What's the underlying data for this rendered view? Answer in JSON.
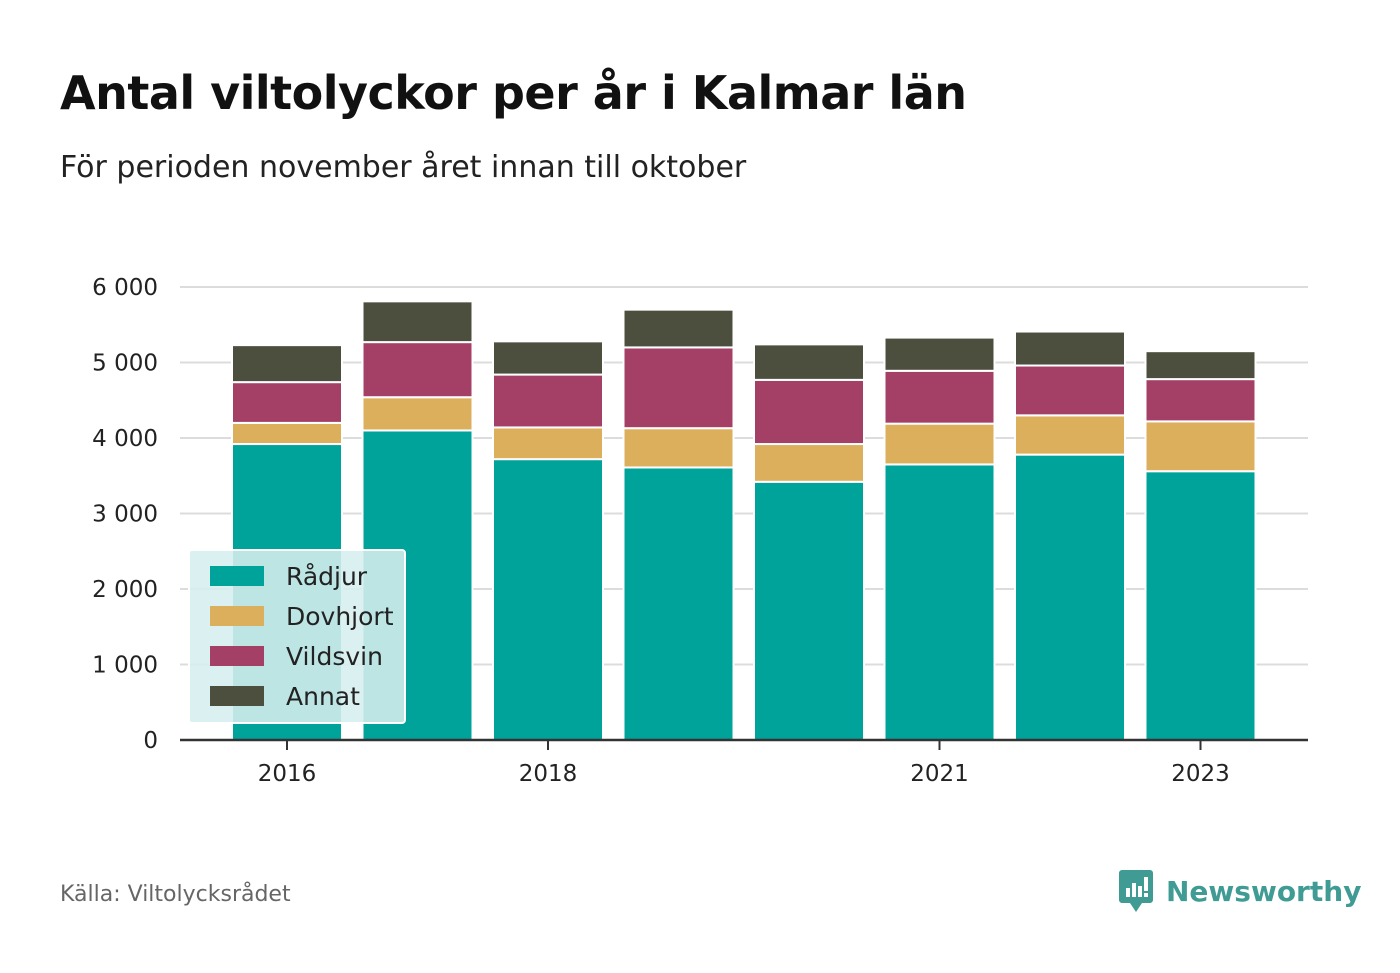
{
  "title": "Antal viltolyckor per år i Kalmar län",
  "subtitle": "För perioden november året innan till oktober",
  "source": "Källa: Viltolycksrådet",
  "brand": {
    "name": "Newsworthy",
    "icon": "newsworthy-logo-icon",
    "color": "#3f9b94"
  },
  "chart_data": {
    "type": "bar",
    "stacked": true,
    "categories": [
      "2016",
      "2017",
      "2018",
      "2019",
      "2020",
      "2021",
      "2022",
      "2023"
    ],
    "x_tick_labels": [
      "2016",
      "2018",
      "2021",
      "2023"
    ],
    "series": [
      {
        "name": "Rådjur",
        "color": "#00a399",
        "values": [
          3920,
          4100,
          3720,
          3610,
          3420,
          3650,
          3780,
          3560
        ]
      },
      {
        "name": "Dovhjort",
        "color": "#dcaf5c",
        "values": [
          280,
          440,
          420,
          520,
          500,
          540,
          520,
          660
        ]
      },
      {
        "name": "Vildsvin",
        "color": "#a44066",
        "values": [
          540,
          730,
          700,
          1070,
          850,
          700,
          660,
          560
        ]
      },
      {
        "name": "Annat",
        "color": "#4c4f3e",
        "values": [
          490,
          540,
          440,
          500,
          470,
          440,
          450,
          370
        ]
      }
    ],
    "y_ticks": [
      0,
      1000,
      2000,
      3000,
      4000,
      5000,
      6000
    ],
    "y_tick_labels": [
      "0",
      "1 000",
      "2 000",
      "3 000",
      "4 000",
      "5 000",
      "6 000"
    ],
    "ylim": [
      0,
      6000
    ],
    "grid": true,
    "legend_position": "bottom-left"
  }
}
